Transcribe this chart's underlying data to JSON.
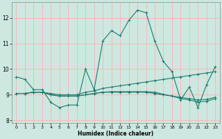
{
  "title": "",
  "xlabel": "Humidex (Indice chaleur)",
  "bg_color": "#cce8e0",
  "grid_color": "#ffb0b0",
  "line_color": "#1a7a6e",
  "xlim": [
    -0.5,
    23.5
  ],
  "ylim": [
    7.9,
    12.6
  ],
  "yticks": [
    8,
    9,
    10,
    11,
    12
  ],
  "xticks": [
    0,
    1,
    2,
    3,
    4,
    5,
    6,
    7,
    8,
    9,
    10,
    11,
    12,
    13,
    14,
    15,
    16,
    17,
    18,
    19,
    20,
    21,
    22,
    23
  ],
  "lines": [
    {
      "x": [
        0,
        1,
        2,
        3,
        4,
        5,
        6,
        7,
        8,
        9,
        10,
        11,
        12,
        13,
        14,
        15,
        16,
        17,
        18,
        19,
        20,
        21,
        22,
        23
      ],
      "y": [
        9.7,
        9.6,
        9.2,
        9.2,
        8.7,
        8.5,
        8.6,
        8.6,
        10.0,
        9.2,
        11.1,
        11.5,
        11.3,
        11.9,
        12.3,
        12.2,
        11.1,
        10.3,
        9.9,
        8.8,
        9.3,
        8.5,
        9.4,
        10.1
      ]
    },
    {
      "x": [
        0,
        1,
        2,
        3,
        4,
        5,
        6,
        7,
        8,
        9,
        10,
        11,
        12,
        13,
        14,
        15,
        16,
        17,
        18,
        19,
        20,
        21,
        22,
        23
      ],
      "y": [
        9.05,
        9.05,
        9.1,
        9.1,
        9.05,
        9.0,
        9.0,
        9.0,
        9.1,
        9.15,
        9.25,
        9.3,
        9.35,
        9.4,
        9.45,
        9.5,
        9.55,
        9.6,
        9.65,
        9.7,
        9.75,
        9.8,
        9.85,
        9.9
      ]
    },
    {
      "x": [
        0,
        1,
        2,
        3,
        4,
        5,
        6,
        7,
        8,
        9,
        10,
        11,
        12,
        13,
        14,
        15,
        16,
        17,
        18,
        19,
        20,
        21,
        22,
        23
      ],
      "y": [
        9.05,
        9.05,
        9.1,
        9.1,
        9.0,
        8.95,
        8.95,
        8.95,
        9.0,
        9.05,
        9.1,
        9.1,
        9.1,
        9.1,
        9.1,
        9.1,
        9.05,
        9.0,
        8.95,
        8.9,
        8.85,
        8.8,
        8.82,
        8.9
      ]
    },
    {
      "x": [
        0,
        1,
        2,
        3,
        4,
        5,
        6,
        7,
        8,
        9,
        10,
        11,
        12,
        13,
        14,
        15,
        16,
        17,
        18,
        19,
        20,
        21,
        22,
        23
      ],
      "y": [
        9.05,
        9.05,
        9.1,
        9.1,
        9.0,
        8.95,
        8.95,
        8.95,
        9.0,
        9.05,
        9.1,
        9.12,
        9.12,
        9.12,
        9.12,
        9.12,
        9.1,
        9.02,
        8.95,
        8.85,
        8.8,
        8.72,
        8.75,
        8.85
      ]
    }
  ]
}
